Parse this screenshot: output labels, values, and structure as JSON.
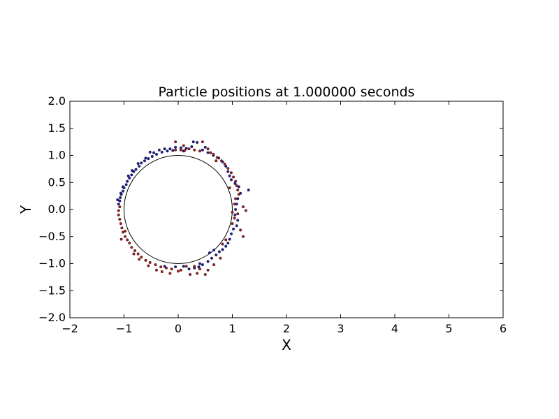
{
  "chart_data": {
    "type": "scatter",
    "title": "Particle positions at 1.000000 seconds",
    "xlabel": "X",
    "ylabel": "Y",
    "xlim": [
      -2,
      6
    ],
    "ylim": [
      -2,
      2
    ],
    "xticks": [
      -2,
      -1,
      0,
      1,
      2,
      3,
      4,
      5,
      6
    ],
    "yticks": [
      -2.0,
      -1.5,
      -1.0,
      -0.5,
      0.0,
      0.5,
      1.0,
      1.5,
      2.0
    ],
    "xtick_labels": [
      "−2",
      "−1",
      "0",
      "1",
      "2",
      "3",
      "4",
      "5",
      "6"
    ],
    "ytick_labels": [
      "−2.0",
      "−1.5",
      "−1.0",
      "−0.5",
      "0.0",
      "0.5",
      "1.0",
      "1.5",
      "2.0"
    ],
    "grid": false,
    "cylinder": {
      "cx": 0,
      "cy": 0,
      "r": 1,
      "stroke": "#000000"
    },
    "series": [
      {
        "color": "#1f1f9e",
        "points": [
          [
            -0.1,
            1.09
          ],
          [
            -0.2,
            1.08
          ],
          [
            -0.3,
            1.06
          ],
          [
            -0.4,
            1.02
          ],
          [
            -0.48,
            0.98
          ],
          [
            -0.55,
            0.94
          ],
          [
            -0.62,
            0.9
          ],
          [
            -0.68,
            0.86
          ],
          [
            -0.72,
            0.8
          ],
          [
            -0.78,
            0.74
          ],
          [
            -0.82,
            0.7
          ],
          [
            -0.86,
            0.64
          ],
          [
            -0.9,
            0.58
          ],
          [
            -0.94,
            0.52
          ],
          [
            -0.96,
            0.46
          ],
          [
            -1.0,
            0.4
          ],
          [
            -1.02,
            0.34
          ],
          [
            -1.05,
            0.28
          ],
          [
            -1.07,
            0.22
          ],
          [
            -1.08,
            0.16
          ],
          [
            -1.1,
            0.1
          ],
          [
            -1.12,
            0.18
          ],
          [
            -1.06,
            0.3
          ],
          [
            -1.02,
            0.42
          ],
          [
            -0.92,
            0.62
          ],
          [
            -0.85,
            0.72
          ],
          [
            -0.74,
            0.85
          ],
          [
            -0.6,
            0.95
          ],
          [
            -0.45,
            1.05
          ],
          [
            -0.35,
            1.1
          ],
          [
            -0.25,
            1.12
          ],
          [
            -0.05,
            1.15
          ],
          [
            0.05,
            1.14
          ],
          [
            0.15,
            1.13
          ],
          [
            0.25,
            1.16
          ],
          [
            0.35,
            1.24
          ],
          [
            0.28,
            1.25
          ],
          [
            0.45,
            1.1
          ],
          [
            0.55,
            1.05
          ],
          [
            0.65,
            1.0
          ],
          [
            0.75,
            0.95
          ],
          [
            0.82,
            0.88
          ],
          [
            0.88,
            0.8
          ],
          [
            0.92,
            0.7
          ],
          [
            0.95,
            0.62
          ],
          [
            0.98,
            0.55
          ],
          [
            1.05,
            0.48
          ],
          [
            1.12,
            0.42
          ],
          [
            1.3,
            0.36
          ],
          [
            1.15,
            0.3
          ],
          [
            1.1,
            0.2
          ],
          [
            1.08,
            0.1
          ],
          [
            1.06,
            0.0
          ],
          [
            1.05,
            -0.1
          ],
          [
            1.1,
            -0.2
          ],
          [
            1.08,
            -0.3
          ],
          [
            1.02,
            -0.36
          ],
          [
            0.98,
            -0.45
          ],
          [
            0.95,
            -0.55
          ],
          [
            0.92,
            -0.62
          ],
          [
            0.88,
            -0.68
          ],
          [
            0.82,
            -0.74
          ],
          [
            0.76,
            -0.78
          ],
          [
            0.7,
            -0.84
          ],
          [
            0.62,
            -0.9
          ],
          [
            0.55,
            -0.96
          ],
          [
            0.45,
            -1.02
          ],
          [
            0.38,
            -1.06
          ],
          [
            0.3,
            -1.08
          ],
          [
            0.2,
            -1.1
          ],
          [
            0.1,
            -1.05
          ],
          [
            -0.05,
            -1.06
          ],
          [
            -0.25,
            -1.05
          ],
          [
            0.58,
            -0.8
          ],
          [
            0.66,
            -0.75
          ],
          [
            0.4,
            -1.0
          ],
          [
            -0.15,
            1.12
          ],
          [
            0.1,
            1.08
          ],
          [
            0.5,
            1.15
          ],
          [
            -0.52,
            1.06
          ]
        ]
      },
      {
        "color": "#a81e1e",
        "points": [
          [
            -0.05,
            1.1
          ],
          [
            0.05,
            1.1
          ],
          [
            0.12,
            1.09
          ],
          [
            0.2,
            1.12
          ],
          [
            0.3,
            1.1
          ],
          [
            0.4,
            1.08
          ],
          [
            0.45,
            1.25
          ],
          [
            0.55,
            1.12
          ],
          [
            0.65,
            1.02
          ],
          [
            0.72,
            0.96
          ],
          [
            0.8,
            0.9
          ],
          [
            0.86,
            0.84
          ],
          [
            0.92,
            0.76
          ],
          [
            0.98,
            0.68
          ],
          [
            1.02,
            0.6
          ],
          [
            1.06,
            0.52
          ],
          [
            1.08,
            0.44
          ],
          [
            1.1,
            0.36
          ],
          [
            1.12,
            0.28
          ],
          [
            1.06,
            0.2
          ],
          [
            1.04,
            0.1
          ],
          [
            1.2,
            0.05
          ],
          [
            1.25,
            -0.02
          ],
          [
            1.1,
            -0.08
          ],
          [
            1.04,
            -0.16
          ],
          [
            1.0,
            -0.26
          ],
          [
            1.15,
            -0.38
          ],
          [
            1.2,
            -0.5
          ],
          [
            0.82,
            -0.64
          ],
          [
            0.78,
            -0.9
          ],
          [
            0.66,
            -1.02
          ],
          [
            0.55,
            -1.12
          ],
          [
            0.35,
            -1.18
          ],
          [
            0.22,
            -1.2
          ],
          [
            0.05,
            -1.12
          ],
          [
            -0.12,
            -1.1
          ],
          [
            -0.22,
            -1.08
          ],
          [
            -0.32,
            -1.06
          ],
          [
            -0.42,
            -1.02
          ],
          [
            -0.52,
            -0.98
          ],
          [
            -0.6,
            -0.94
          ],
          [
            -0.68,
            -0.88
          ],
          [
            -0.74,
            -0.82
          ],
          [
            -0.8,
            -0.76
          ],
          [
            -0.86,
            -0.7
          ],
          [
            -0.9,
            -0.62
          ],
          [
            -0.94,
            -0.56
          ],
          [
            -0.98,
            -0.5
          ],
          [
            -1.02,
            -0.42
          ],
          [
            -1.04,
            -0.34
          ],
          [
            -1.06,
            -0.26
          ],
          [
            -1.08,
            -0.18
          ],
          [
            -1.1,
            -0.1
          ],
          [
            -1.1,
            -0.02
          ],
          [
            -1.08,
            0.05
          ],
          [
            -0.4,
            -1.12
          ],
          [
            -0.3,
            -1.15
          ],
          [
            -0.15,
            -1.18
          ],
          [
            0.0,
            -1.14
          ],
          [
            0.15,
            -1.05
          ],
          [
            0.3,
            -1.05
          ],
          [
            0.4,
            -1.1
          ],
          [
            -0.55,
            -1.04
          ],
          [
            -0.72,
            -0.92
          ],
          [
            -0.05,
            1.25
          ],
          [
            0.1,
            1.18
          ],
          [
            0.6,
            1.05
          ],
          [
            0.7,
            0.9
          ],
          [
            0.95,
            0.4
          ],
          [
            1.0,
            -0.05
          ],
          [
            0.88,
            -0.56
          ],
          [
            -0.82,
            -0.82
          ],
          [
            -0.98,
            -0.4
          ],
          [
            -1.05,
            -0.55
          ],
          [
            0.5,
            -1.2
          ]
        ]
      }
    ]
  }
}
